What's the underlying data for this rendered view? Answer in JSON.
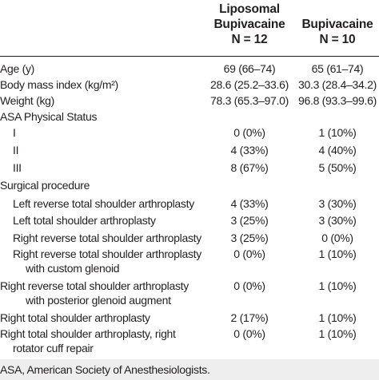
{
  "columns": [
    {
      "lines": [
        "Liposomal",
        "Bupivacaine",
        "N = 12"
      ]
    },
    {
      "lines": [
        "Bupivacaine",
        "N = 10"
      ]
    }
  ],
  "rows": [
    {
      "label": "Age (y)",
      "indent": 0,
      "v1": "69 (66–74)",
      "v2": "65 (61–74)"
    },
    {
      "label": "Body mass index (kg/m²)",
      "indent": 0,
      "v1": "28.6 (25.2–33.6)",
      "v2": "30.3 (28.4–34.2)"
    },
    {
      "label": "Weight (kg)",
      "indent": 0,
      "v1": "78.3 (65.3–97.0)",
      "v2": "96.8 (93.3–99.6)"
    },
    {
      "label": "ASA Physical Status",
      "indent": 0,
      "v1": "",
      "v2": ""
    },
    {
      "label": "I",
      "indent": 1,
      "v1": "0 (0%)",
      "v2": "1 (10%)"
    },
    {
      "label": "II",
      "indent": 1,
      "v1": "4 (33%)",
      "v2": "4 (40%)"
    },
    {
      "label": "III",
      "indent": 1,
      "v1": "8 (67%)",
      "v2": "5 (50%)"
    },
    {
      "label": "Surgical procedure",
      "indent": 0,
      "v1": "",
      "v2": ""
    },
    {
      "label": "Left reverse total shoulder arthroplasty",
      "indent": 1,
      "v1": "4 (33%)",
      "v2": "3 (30%)"
    },
    {
      "label": "Left total shoulder arthroplasty",
      "indent": 1,
      "v1": "3 (25%)",
      "v2": "3 (30%)"
    },
    {
      "label": "Right reverse total shoulder arthroplasty",
      "indent": 1,
      "v1": "3 (25%)",
      "v2": "0 (0%)"
    },
    {
      "label": "Right reverse total shoulder arthroplasty",
      "indent": 1,
      "v1": "0 (0%)",
      "v2": "1 (10%)"
    },
    {
      "label": "with custom glenoid",
      "indent": 2,
      "v1": "",
      "v2": ""
    },
    {
      "label": "Right reverse total shoulder arthroplasty",
      "indent": 0,
      "v1": "0 (0%)",
      "v2": "1 (10%)"
    },
    {
      "label": "with posterior glenoid augment",
      "indent": 2,
      "v1": "",
      "v2": ""
    },
    {
      "label": "Right total shoulder arthroplasty",
      "indent": 0,
      "v1": "2 (17%)",
      "v2": "1 (10%)"
    },
    {
      "label": "Right total shoulder arthroplasty, right",
      "indent": 0,
      "v1": "0 (0%)",
      "v2": "1 (10%)"
    },
    {
      "label": "rotator cuff repair",
      "indent": 1,
      "v1": "",
      "v2": ""
    }
  ],
  "footnote": "ASA, American Society of Anesthesiologists."
}
